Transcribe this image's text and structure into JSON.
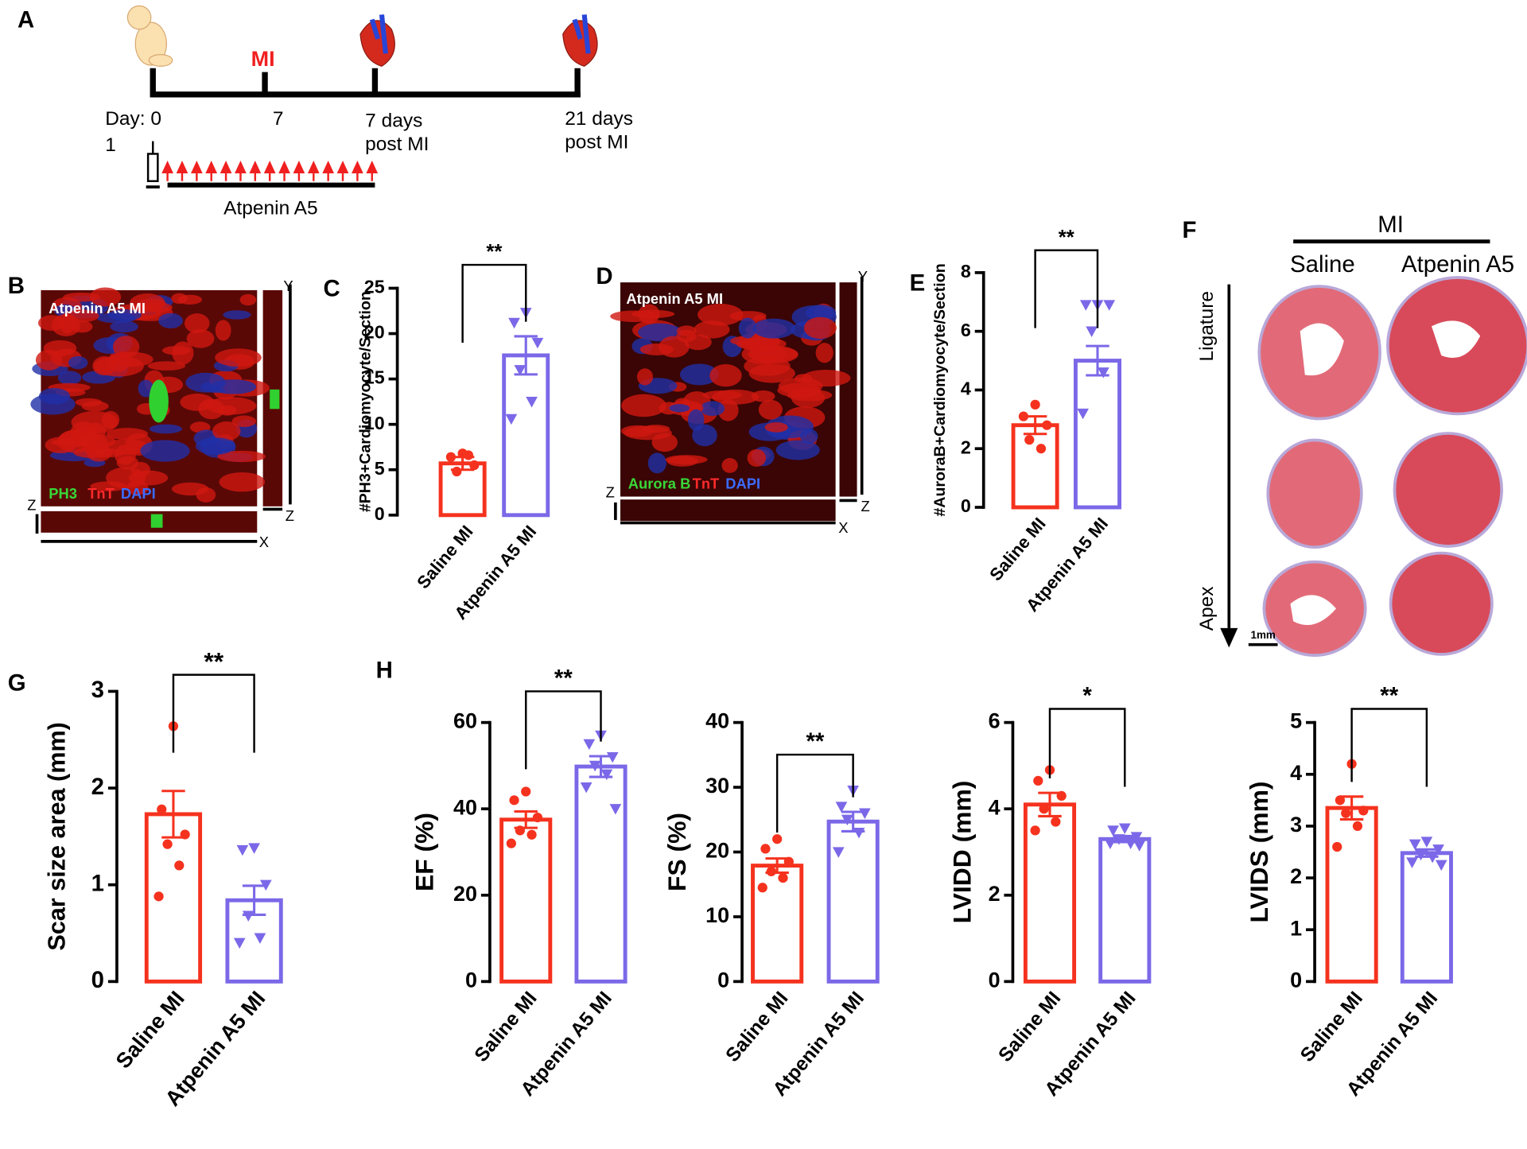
{
  "panel_labels": [
    "A",
    "B",
    "C",
    "D",
    "E",
    "F",
    "G",
    "H"
  ],
  "timeline": {
    "event": "MI",
    "day": "Day: 0",
    "day_note": "1",
    "t1": "7",
    "t2": [
      "7 days",
      "post MI"
    ],
    "t3": [
      "21 days",
      "post MI"
    ],
    "treatment": "Atpenin A5"
  },
  "images": {
    "B": {
      "title": "Atpenin A5 MI",
      "stains": [
        "PH3",
        "TnT",
        "DAPI"
      ],
      "axes": [
        "Z",
        "Y",
        "Z",
        "X"
      ]
    },
    "D": {
      "title": "Atpenin A5 MI",
      "stains": [
        "Aurora B",
        "TnT",
        "DAPI"
      ],
      "axes": [
        "Z",
        "Y",
        "Z",
        "X"
      ]
    },
    "F": {
      "group": "MI",
      "columns": [
        "Saline",
        "Atpenin A5"
      ],
      "top": "Ligature",
      "bottom": "Apex",
      "scale": "1mm"
    }
  },
  "chart_data": [
    {
      "type": "bar",
      "ylabel": "#PH3+Cardiomyocyte/Section",
      "categories": [
        "Saline MI",
        "Atpenin A5 MI"
      ],
      "values": [
        5.7,
        17.6
      ],
      "errors": [
        0.7,
        2.1
      ],
      "points": [
        [
          6.8,
          6.4,
          5.5,
          4.8,
          6.6
        ],
        [
          22.3,
          21.2,
          19,
          16,
          12.5,
          10.6
        ]
      ],
      "colors": [
        "#f5321e",
        "#7b68e8"
      ],
      "markers": [
        "circle",
        "triangle-down"
      ],
      "ylim": [
        0,
        25
      ],
      "yticks": [
        0,
        5,
        10,
        15,
        20,
        25
      ],
      "significance": "**"
    },
    {
      "type": "bar",
      "ylabel": "#AuroraB+Cardiomyocyte/Section",
      "categories": [
        "Saline MI",
        "Atpenin A5 MI"
      ],
      "values": [
        2.8,
        5.0
      ],
      "errors": [
        0.3,
        0.5
      ],
      "points": [
        [
          3.5,
          3.1,
          2.8,
          2.3,
          2.0
        ],
        [
          6.9,
          6.9,
          6.9,
          6.0,
          4.6,
          3.2
        ]
      ],
      "colors": [
        "#f5321e",
        "#7b68e8"
      ],
      "markers": [
        "circle",
        "triangle-down"
      ],
      "ylim": [
        0,
        8
      ],
      "yticks": [
        0,
        2,
        4,
        6,
        8
      ],
      "significance": "**"
    },
    {
      "type": "bar",
      "ylabel": "Scar size area (mm)",
      "categories": [
        "Saline MI",
        "Atpenin A5 MI"
      ],
      "values": [
        1.73,
        0.84
      ],
      "errors": [
        0.24,
        0.15
      ],
      "points": [
        [
          2.64,
          1.78,
          1.52,
          1.42,
          1.2,
          0.88
        ],
        [
          1.38,
          1.36,
          1.0,
          0.68,
          0.45,
          0.4
        ]
      ],
      "colors": [
        "#f5321e",
        "#7b68e8"
      ],
      "markers": [
        "circle",
        "triangle-down"
      ],
      "ylim": [
        0,
        3
      ],
      "yticks": [
        0,
        1,
        2,
        3
      ],
      "significance": "**"
    },
    {
      "type": "bar",
      "ylabel": "EF (%)",
      "categories": [
        "Saline MI",
        "Atpenin A5 MI"
      ],
      "values": [
        37.5,
        49.8
      ],
      "errors": [
        1.9,
        2.4
      ],
      "points": [
        [
          44,
          42,
          38,
          35,
          34,
          32
        ],
        [
          57,
          55,
          52,
          50,
          48,
          45,
          40
        ]
      ],
      "colors": [
        "#f5321e",
        "#7b68e8"
      ],
      "markers": [
        "circle",
        "triangle-down"
      ],
      "ylim": [
        0,
        60
      ],
      "yticks": [
        0,
        20,
        40,
        60
      ],
      "significance": "**"
    },
    {
      "type": "bar",
      "ylabel": "FS (%)",
      "categories": [
        "Saline MI",
        "Atpenin A5 MI"
      ],
      "values": [
        17.9,
        24.7
      ],
      "errors": [
        1.1,
        1.5
      ],
      "points": [
        [
          22,
          20.5,
          18.5,
          17,
          16,
          14.5
        ],
        [
          29.5,
          27,
          26,
          25,
          23,
          20
        ]
      ],
      "colors": [
        "#f5321e",
        "#7b68e8"
      ],
      "markers": [
        "circle",
        "triangle-down"
      ],
      "ylim": [
        0,
        40
      ],
      "yticks": [
        0,
        10,
        20,
        30,
        40
      ],
      "significance": "**"
    },
    {
      "type": "bar",
      "ylabel": "LVIDD (mm)",
      "categories": [
        "Saline MI",
        "Atpenin A5 MI"
      ],
      "values": [
        4.1,
        3.3
      ],
      "errors": [
        0.27,
        0.07
      ],
      "points": [
        [
          4.9,
          4.65,
          4.3,
          4.0,
          3.7,
          3.5
        ],
        [
          3.55,
          3.5,
          3.35,
          3.3,
          3.2,
          3.2,
          3.15
        ]
      ],
      "colors": [
        "#f5321e",
        "#7b68e8"
      ],
      "markers": [
        "circle",
        "triangle-down"
      ],
      "ylim": [
        0,
        6
      ],
      "yticks": [
        0,
        2,
        4,
        6
      ],
      "significance": "*"
    },
    {
      "type": "bar",
      "ylabel": "LVIDS (mm)",
      "categories": [
        "Saline MI",
        "Atpenin A5 MI"
      ],
      "values": [
        3.35,
        2.48
      ],
      "errors": [
        0.22,
        0.07
      ],
      "points": [
        [
          4.2,
          3.5,
          3.3,
          3.25,
          3.0,
          2.6
        ],
        [
          2.7,
          2.65,
          2.55,
          2.45,
          2.4,
          2.3,
          2.25
        ]
      ],
      "colors": [
        "#f5321e",
        "#7b68e8"
      ],
      "markers": [
        "circle",
        "triangle-down"
      ],
      "ylim": [
        0,
        5
      ],
      "yticks": [
        0,
        1,
        2,
        3,
        4,
        5
      ],
      "significance": "**"
    }
  ]
}
